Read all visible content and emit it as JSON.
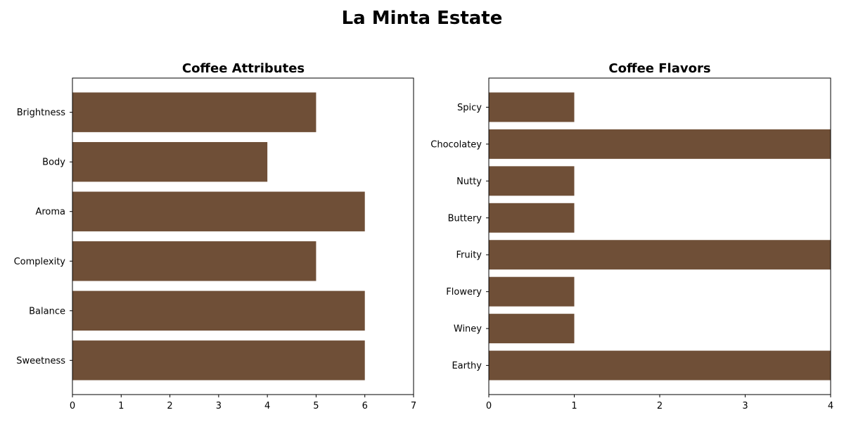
{
  "figure": {
    "title": "La Minta Estate"
  },
  "chart_data": [
    {
      "type": "bar",
      "orientation": "horizontal",
      "title": "Coffee Attributes",
      "xlabel": "",
      "ylabel": "",
      "categories": [
        "Brightness",
        "Body",
        "Aroma",
        "Complexity",
        "Balance",
        "Sweetness"
      ],
      "values": [
        5,
        4,
        6,
        5,
        6,
        6
      ],
      "xlim": [
        0,
        7
      ],
      "xticks": [
        "0",
        "1",
        "2",
        "3",
        "4",
        "5",
        "6",
        "7"
      ],
      "grid": false,
      "bar_color": "#6f4f37"
    },
    {
      "type": "bar",
      "orientation": "horizontal",
      "title": "Coffee Flavors",
      "xlabel": "",
      "ylabel": "",
      "categories": [
        "Spicy",
        "Chocolatey",
        "Nutty",
        "Buttery",
        "Fruity",
        "Flowery",
        "Winey",
        "Earthy"
      ],
      "values": [
        1,
        4,
        1,
        1,
        4,
        1,
        1,
        4
      ],
      "xlim": [
        0,
        4
      ],
      "xticks": [
        "0",
        "1",
        "2",
        "3",
        "4"
      ],
      "grid": false,
      "bar_color": "#6f4f37"
    }
  ]
}
